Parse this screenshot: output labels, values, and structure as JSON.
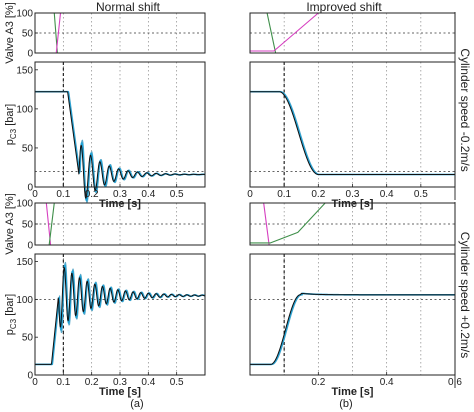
{
  "labels": {
    "title_a": "Normal shift",
    "title_b": "Improved shift",
    "row_label_top": "Cylinder speed -0.2m/s",
    "row_label_bottom": "Cylinder speed +0.2m/s",
    "caption_a": "(a)",
    "caption_b": "(b)"
  },
  "colors": {
    "valve_open": "#d63fc0",
    "valve_close": "#3f8f4a",
    "measured": "#111111",
    "model": "#1fa3d8",
    "model_alt": "#5aa9c9",
    "reference": "#000000"
  },
  "chart_data": [
    {
      "type": "line",
      "panel": "valve-top-a",
      "ylabel": "Valve A3 [%]",
      "yticks": [
        "0",
        "50",
        "100"
      ],
      "ylim": [
        0,
        100
      ],
      "xlim": [
        0,
        0.6
      ],
      "xgrid": [
        0.1,
        0.2,
        0.3,
        0.4,
        0.5
      ],
      "hline": 50,
      "series": [
        {
          "x": [
            0,
            0.048,
            0.068,
            0.079,
            0.6
          ],
          "y": [
            100,
            100,
            100,
            0,
            0
          ],
          "role": "valve_close"
        },
        {
          "x": [
            0,
            0.075,
            0.09,
            0.1,
            0.6
          ],
          "y": [
            0,
            0,
            100,
            100,
            100
          ],
          "role": "valve_open"
        }
      ]
    },
    {
      "type": "line",
      "panel": "pressure-top-a",
      "ylabel": "p_C3 [bar]",
      "ylabel_main": "p",
      "ylabel_sub": "C3",
      "ylabel_unit": " [bar]",
      "xlabel": "Time [s]",
      "xticks": [
        "0",
        "0.1",
        "0.2",
        "0.3",
        "0.4",
        "0.5"
      ],
      "yticks": [
        "0",
        "50",
        "100",
        "150"
      ],
      "ylim": [
        0,
        160
      ],
      "xlim": [
        0,
        0.6
      ],
      "xgrid": [
        0.1,
        0.2,
        0.3,
        0.4,
        0.5
      ],
      "hline": 20,
      "vline": 0.1,
      "osc": {
        "start": 122,
        "t0": 0.115,
        "drop": 0.04,
        "final": 16,
        "amp": 45,
        "period": 0.033,
        "decay": 0.08
      }
    },
    {
      "type": "line",
      "panel": "valve-top-b",
      "ylim": [
        0,
        100
      ],
      "xlim": [
        0,
        0.6
      ],
      "xgrid": [
        0.1,
        0.2,
        0.3,
        0.4,
        0.5
      ],
      "hline": 50,
      "series": [
        {
          "x": [
            0,
            0.05,
            0.075,
            0.6
          ],
          "y": [
            100,
            100,
            0,
            0
          ],
          "role": "valve_close"
        },
        {
          "x": [
            0,
            0.07,
            0.2,
            0.6
          ],
          "y": [
            5,
            5,
            100,
            100
          ],
          "role": "valve_open"
        }
      ]
    },
    {
      "type": "line",
      "panel": "pressure-top-b",
      "xlabel": "Time [s]",
      "xticks": [
        "0",
        "0.1",
        "0.2",
        "0.3",
        "0.4",
        "0.5"
      ],
      "ylim": [
        0,
        160
      ],
      "xlim": [
        0,
        0.6
      ],
      "xgrid": [
        0.1,
        0.2,
        0.3,
        0.4,
        0.5
      ],
      "hline": 20,
      "vline": 0.1,
      "smooth": {
        "start": 122,
        "t0": 0.085,
        "t1": 0.2,
        "final": 16
      }
    },
    {
      "type": "line",
      "panel": "valve-bottom-a",
      "ylabel": "Valve A3 [%]",
      "yticks": [
        "0",
        "50",
        "100"
      ],
      "ylim": [
        0,
        100
      ],
      "xlim": [
        0,
        0.6
      ],
      "xgrid": [
        0.1,
        0.2,
        0.3,
        0.4,
        0.5
      ],
      "hline": 50,
      "series": [
        {
          "x": [
            0,
            0.04,
            0.055,
            0.6
          ],
          "y": [
            100,
            100,
            0,
            0
          ],
          "role": "valve_open"
        },
        {
          "x": [
            0,
            0.05,
            0.068,
            0.6
          ],
          "y": [
            0,
            0,
            100,
            100
          ],
          "role": "valve_close"
        }
      ]
    },
    {
      "type": "line",
      "panel": "pressure-bottom-a",
      "ylabel": "p_C3 [bar]",
      "ylabel_main": "p",
      "ylabel_sub": "C3",
      "ylabel_unit": " [bar]",
      "xlabel": "Time [s]",
      "xticks": [
        "0",
        "0.1",
        "0.2",
        "0.3",
        "0.4",
        "0.5"
      ],
      "yticks": [
        "0",
        "50",
        "100",
        "150"
      ],
      "ylim": [
        0,
        160
      ],
      "xlim": [
        0,
        0.6
      ],
      "xgrid": [
        0.1,
        0.2,
        0.3,
        0.4,
        0.5
      ],
      "hline": 100,
      "vline": 0.1,
      "osc": {
        "start": 14,
        "t0": 0.058,
        "drop": 0.025,
        "final": 105,
        "amp": -48,
        "period": 0.027,
        "decay": 0.12
      }
    },
    {
      "type": "line",
      "panel": "valve-bottom-b",
      "ylim": [
        0,
        100
      ],
      "xlim": [
        0,
        0.6
      ],
      "xgrid": [
        0.1,
        0.2,
        0.3,
        0.4,
        0.5
      ],
      "hline": 50,
      "series": [
        {
          "x": [
            0,
            0.04,
            0.056,
            0.6
          ],
          "y": [
            100,
            100,
            0,
            0
          ],
          "role": "valve_open"
        },
        {
          "x": [
            0,
            0.06,
            0.14,
            0.22,
            0.6
          ],
          "y": [
            5,
            5,
            30,
            100,
            100
          ],
          "role": "valve_close"
        }
      ]
    },
    {
      "type": "line",
      "panel": "pressure-bottom-b",
      "xlabel": "Time [s]",
      "xticks": [
        "0.2",
        "0.4",
        "0.6"
      ],
      "xtick_values": [
        0.2,
        0.4,
        0.6
      ],
      "ylim": [
        0,
        160
      ],
      "xlim": [
        0,
        0.6
      ],
      "xgrid": [
        0.1,
        0.2,
        0.3,
        0.4,
        0.5
      ],
      "hline": 100,
      "vline": 0.1,
      "smooth": {
        "start": 14,
        "t0": 0.06,
        "t1": 0.15,
        "final": 106,
        "overshoot": 4
      }
    }
  ]
}
